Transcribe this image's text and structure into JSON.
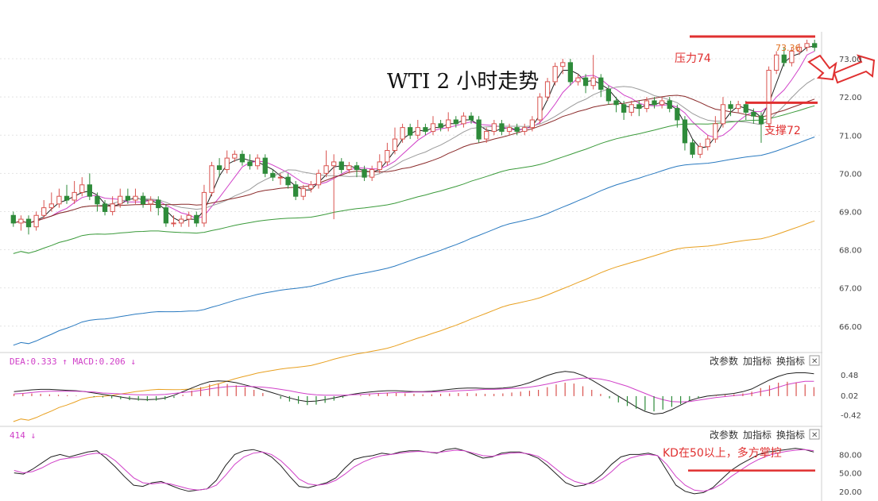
{
  "colors": {
    "up": "#d9534f",
    "down": "#2e8b3a",
    "annotation": "#e03030",
    "ma_black": "#202020",
    "ma_magenta": "#d040c8",
    "ma_gray": "#9a9a9a",
    "ma_brown": "#8a2a2a",
    "ma_green": "#3a9a3a",
    "ma_blue": "#2a7ac0",
    "ma_orange": "#e8a020",
    "grid": "#e4e4e4",
    "axis_text": "#444444"
  },
  "chart_data": [
    {
      "id": "price",
      "type": "candlestick",
      "title": "WTI 2 小时走势",
      "ylim": [
        65.6,
        73.5
      ],
      "yticks": [
        "66.00",
        "67.00",
        "68.00",
        "69.00",
        "70.00",
        "71.00",
        "72.00",
        "73.00"
      ],
      "last_price_label": "73.36",
      "candles": [
        [
          68.9,
          68.7,
          69.0,
          68.6
        ],
        [
          68.7,
          68.8,
          68.9,
          68.5
        ],
        [
          68.8,
          68.6,
          68.9,
          68.4
        ],
        [
          68.6,
          68.9,
          69.0,
          68.5
        ],
        [
          68.9,
          69.1,
          69.3,
          68.8
        ],
        [
          69.1,
          69.2,
          69.5,
          69.0
        ],
        [
          69.2,
          69.4,
          69.6,
          69.1
        ],
        [
          69.4,
          69.3,
          69.7,
          69.2
        ],
        [
          69.3,
          69.5,
          69.8,
          69.2
        ],
        [
          69.5,
          69.7,
          69.9,
          69.4
        ],
        [
          69.7,
          69.4,
          70.0,
          69.3
        ],
        [
          69.4,
          69.2,
          69.5,
          69.0
        ],
        [
          69.2,
          69.0,
          69.3,
          68.9
        ],
        [
          69.0,
          69.2,
          69.4,
          68.9
        ],
        [
          69.2,
          69.4,
          69.6,
          69.1
        ],
        [
          69.4,
          69.3,
          69.6,
          69.2
        ],
        [
          69.3,
          69.4,
          69.6,
          69.2
        ],
        [
          69.4,
          69.2,
          69.5,
          69.1
        ],
        [
          69.2,
          69.3,
          69.4,
          69.0
        ],
        [
          69.3,
          69.1,
          69.4,
          68.9
        ],
        [
          69.1,
          68.7,
          69.2,
          68.6
        ],
        [
          68.7,
          68.7,
          68.9,
          68.6
        ],
        [
          68.7,
          68.8,
          68.9,
          68.6
        ],
        [
          68.8,
          68.9,
          69.0,
          68.6
        ],
        [
          68.9,
          68.7,
          69.0,
          68.6
        ],
        [
          68.7,
          69.5,
          69.7,
          68.6
        ],
        [
          69.5,
          70.2,
          70.3,
          69.4
        ],
        [
          70.2,
          70.1,
          70.4,
          69.9
        ],
        [
          70.1,
          70.4,
          70.6,
          70.0
        ],
        [
          70.4,
          70.5,
          70.6,
          70.3
        ],
        [
          70.5,
          70.3,
          70.6,
          70.2
        ],
        [
          70.3,
          70.2,
          70.5,
          70.1
        ],
        [
          70.2,
          70.4,
          70.5,
          70.1
        ],
        [
          70.4,
          70.0,
          70.5,
          69.9
        ],
        [
          70.0,
          69.9,
          70.1,
          69.8
        ],
        [
          69.9,
          69.9,
          70.0,
          69.7
        ],
        [
          69.9,
          69.7,
          70.0,
          69.6
        ],
        [
          69.7,
          69.4,
          69.8,
          69.3
        ],
        [
          69.4,
          69.6,
          69.7,
          69.3
        ],
        [
          69.6,
          69.7,
          69.8,
          69.5
        ],
        [
          69.7,
          70.0,
          70.1,
          69.6
        ],
        [
          70.0,
          70.2,
          70.6,
          69.9
        ],
        [
          70.2,
          70.3,
          70.5,
          68.8
        ],
        [
          70.3,
          70.1,
          70.4,
          70.0
        ],
        [
          70.1,
          70.2,
          70.3,
          70.0
        ],
        [
          70.2,
          70.1,
          70.3,
          69.9
        ],
        [
          70.1,
          69.9,
          70.2,
          69.8
        ],
        [
          69.9,
          70.1,
          70.2,
          69.8
        ],
        [
          70.1,
          70.3,
          70.5,
          70.0
        ],
        [
          70.3,
          70.6,
          70.8,
          70.2
        ],
        [
          70.6,
          70.9,
          71.2,
          70.5
        ],
        [
          70.9,
          71.2,
          71.3,
          70.8
        ],
        [
          71.2,
          71.0,
          71.3,
          70.9
        ],
        [
          71.0,
          71.2,
          71.4,
          70.9
        ],
        [
          71.2,
          71.1,
          71.3,
          71.0
        ],
        [
          71.1,
          71.3,
          71.5,
          71.0
        ],
        [
          71.3,
          71.2,
          71.4,
          71.1
        ],
        [
          71.2,
          71.4,
          71.6,
          71.1
        ],
        [
          71.4,
          71.3,
          71.5,
          71.2
        ],
        [
          71.3,
          71.5,
          71.6,
          71.2
        ],
        [
          71.5,
          71.4,
          71.6,
          71.3
        ],
        [
          71.4,
          70.9,
          71.5,
          70.8
        ],
        [
          70.9,
          71.1,
          71.2,
          70.8
        ],
        [
          71.1,
          71.3,
          71.4,
          71.0
        ],
        [
          71.3,
          71.1,
          71.4,
          71.0
        ],
        [
          71.1,
          71.2,
          71.3,
          71.0
        ],
        [
          71.2,
          71.1,
          71.3,
          71.0
        ],
        [
          71.1,
          71.2,
          71.3,
          71.0
        ],
        [
          71.2,
          71.4,
          71.5,
          71.1
        ],
        [
          71.4,
          72.0,
          72.1,
          71.3
        ],
        [
          72.0,
          72.4,
          72.5,
          71.9
        ],
        [
          72.4,
          72.8,
          72.9,
          72.3
        ],
        [
          72.8,
          72.9,
          73.0,
          72.6
        ],
        [
          72.9,
          72.4,
          73.0,
          72.3
        ],
        [
          72.4,
          72.5,
          72.6,
          72.3
        ],
        [
          72.5,
          72.3,
          72.6,
          72.1
        ],
        [
          72.3,
          72.5,
          73.1,
          72.2
        ],
        [
          72.5,
          72.2,
          72.6,
          72.0
        ],
        [
          72.2,
          71.9,
          72.3,
          71.8
        ],
        [
          71.9,
          71.8,
          72.0,
          71.6
        ],
        [
          71.8,
          71.6,
          71.9,
          71.4
        ],
        [
          71.6,
          71.8,
          71.9,
          71.5
        ],
        [
          71.8,
          71.7,
          71.9,
          71.5
        ],
        [
          71.7,
          71.9,
          72.0,
          71.6
        ],
        [
          71.9,
          71.8,
          72.0,
          71.7
        ],
        [
          71.8,
          71.9,
          72.0,
          71.7
        ],
        [
          71.9,
          71.7,
          72.0,
          71.6
        ],
        [
          71.7,
          71.4,
          71.8,
          71.2
        ],
        [
          71.4,
          70.8,
          71.5,
          70.6
        ],
        [
          70.8,
          70.5,
          70.9,
          70.4
        ],
        [
          70.5,
          70.7,
          70.8,
          70.4
        ],
        [
          70.7,
          70.9,
          71.0,
          70.6
        ],
        [
          70.9,
          71.3,
          71.5,
          70.8
        ],
        [
          71.3,
          71.8,
          72.0,
          71.2
        ],
        [
          71.8,
          71.7,
          71.9,
          71.5
        ],
        [
          71.7,
          71.8,
          71.9,
          71.6
        ],
        [
          71.8,
          71.6,
          71.9,
          71.4
        ],
        [
          71.6,
          71.5,
          71.7,
          71.3
        ],
        [
          71.5,
          71.3,
          71.6,
          70.8
        ],
        [
          71.3,
          72.7,
          72.8,
          71.2
        ],
        [
          72.7,
          73.1,
          73.2,
          72.6
        ],
        [
          73.1,
          72.9,
          73.3,
          72.8
        ],
        [
          72.9,
          73.2,
          73.3,
          72.8
        ],
        [
          73.2,
          73.3,
          73.4,
          73.1
        ],
        [
          73.3,
          73.4,
          73.5,
          73.2
        ],
        [
          73.4,
          73.3,
          73.5,
          73.2
        ]
      ],
      "annotations": {
        "resistance_label": "压力74",
        "support_label": "支撑72"
      }
    },
    {
      "id": "macd",
      "type": "macd",
      "header": "DEA:0.333 ↑ MACD:0.206 ↓",
      "ylim": [
        -0.55,
        0.6
      ],
      "yticks": [
        "0.48",
        "0.02",
        "-0.42"
      ],
      "hist": [
        0.05,
        0.06,
        0.06,
        0.05,
        0.04,
        0.03,
        0.02,
        0.01,
        0.0,
        -0.02,
        -0.03,
        -0.05,
        -0.07,
        -0.09,
        -0.1,
        -0.11,
        -0.1,
        -0.08,
        -0.04,
        0.03,
        0.12,
        0.2,
        0.26,
        0.28,
        0.27,
        0.24,
        0.2,
        0.14,
        0.07,
        0.0,
        -0.06,
        -0.12,
        -0.17,
        -0.2,
        -0.19,
        -0.15,
        -0.1,
        -0.04,
        0.0,
        0.02,
        0.04,
        0.06,
        0.07,
        0.07,
        0.06,
        0.05,
        0.04,
        0.04,
        0.05,
        0.06,
        0.07,
        0.07,
        0.06,
        0.05,
        0.05,
        0.06,
        0.08,
        0.1,
        0.12,
        0.14,
        0.2,
        0.26,
        0.3,
        0.28,
        0.22,
        0.14,
        0.05,
        -0.05,
        -0.14,
        -0.22,
        -0.28,
        -0.32,
        -0.34,
        -0.3,
        -0.24,
        -0.18,
        -0.1,
        -0.04,
        0.0,
        0.02,
        0.03,
        0.04,
        0.06,
        0.1,
        0.18,
        0.24,
        0.3,
        0.32,
        0.3,
        0.26,
        0.2
      ],
      "dif": [
        0.1,
        0.12,
        0.14,
        0.15,
        0.15,
        0.14,
        0.13,
        0.12,
        0.1,
        0.07,
        0.04,
        0.01,
        -0.02,
        -0.05,
        -0.07,
        -0.08,
        -0.07,
        -0.04,
        0.02,
        0.1,
        0.18,
        0.26,
        0.32,
        0.34,
        0.33,
        0.3,
        0.25,
        0.2,
        0.14,
        0.08,
        0.02,
        -0.04,
        -0.09,
        -0.12,
        -0.11,
        -0.08,
        -0.04,
        0.0,
        0.04,
        0.07,
        0.09,
        0.11,
        0.12,
        0.12,
        0.11,
        0.1,
        0.1,
        0.11,
        0.13,
        0.15,
        0.17,
        0.18,
        0.18,
        0.17,
        0.17,
        0.18,
        0.2,
        0.24,
        0.3,
        0.38,
        0.46,
        0.52,
        0.55,
        0.53,
        0.46,
        0.36,
        0.24,
        0.12,
        0.0,
        -0.12,
        -0.24,
        -0.34,
        -0.4,
        -0.38,
        -0.3,
        -0.2,
        -0.1,
        -0.04,
        0.0,
        0.02,
        0.04,
        0.06,
        0.1,
        0.16,
        0.26,
        0.36,
        0.44,
        0.5,
        0.52,
        0.52,
        0.5
      ],
      "dea": [
        0.05,
        0.06,
        0.08,
        0.1,
        0.11,
        0.11,
        0.11,
        0.11,
        0.1,
        0.09,
        0.07,
        0.06,
        0.05,
        0.04,
        0.03,
        0.03,
        0.03,
        0.04,
        0.06,
        0.08,
        0.1,
        0.13,
        0.16,
        0.19,
        0.21,
        0.22,
        0.22,
        0.21,
        0.2,
        0.18,
        0.15,
        0.12,
        0.08,
        0.05,
        0.03,
        0.02,
        0.02,
        0.02,
        0.03,
        0.04,
        0.05,
        0.06,
        0.07,
        0.08,
        0.08,
        0.09,
        0.09,
        0.09,
        0.1,
        0.11,
        0.12,
        0.13,
        0.14,
        0.15,
        0.15,
        0.16,
        0.17,
        0.18,
        0.2,
        0.23,
        0.27,
        0.31,
        0.35,
        0.38,
        0.4,
        0.4,
        0.38,
        0.34,
        0.28,
        0.22,
        0.14,
        0.06,
        -0.02,
        -0.08,
        -0.12,
        -0.13,
        -0.12,
        -0.09,
        -0.06,
        -0.03,
        -0.01,
        0.01,
        0.03,
        0.06,
        0.1,
        0.14,
        0.2,
        0.26,
        0.3,
        0.33,
        0.33
      ]
    },
    {
      "id": "kd",
      "type": "kd",
      "header": "414 ↓",
      "ylim": [
        12,
        96
      ],
      "yticks": [
        "80.00",
        "50.00",
        "20.00"
      ],
      "k": [
        50,
        48,
        56,
        66,
        76,
        80,
        76,
        80,
        84,
        86,
        74,
        60,
        44,
        30,
        28,
        34,
        36,
        30,
        24,
        20,
        22,
        24,
        38,
        62,
        80,
        86,
        88,
        84,
        76,
        62,
        44,
        28,
        26,
        30,
        34,
        42,
        58,
        72,
        76,
        78,
        82,
        80,
        84,
        86,
        86,
        84,
        82,
        88,
        90,
        86,
        80,
        74,
        76,
        82,
        84,
        84,
        80,
        74,
        62,
        48,
        34,
        28,
        30,
        36,
        48,
        64,
        76,
        80,
        80,
        82,
        78,
        54,
        30,
        20,
        16,
        18,
        26,
        40,
        54,
        64,
        72,
        80,
        84,
        86,
        88,
        90,
        88,
        84
      ],
      "d": [
        54,
        50,
        52,
        58,
        66,
        72,
        74,
        76,
        80,
        82,
        80,
        70,
        56,
        42,
        34,
        32,
        34,
        32,
        28,
        24,
        22,
        24,
        30,
        46,
        64,
        76,
        82,
        84,
        80,
        70,
        56,
        40,
        32,
        30,
        32,
        38,
        48,
        60,
        68,
        74,
        78,
        80,
        82,
        84,
        85,
        84,
        83,
        85,
        87,
        86,
        82,
        78,
        77,
        80,
        82,
        83,
        81,
        77,
        68,
        56,
        44,
        36,
        32,
        33,
        40,
        52,
        66,
        74,
        78,
        80,
        78,
        64,
        44,
        30,
        22,
        20,
        24,
        32,
        44,
        54,
        64,
        72,
        78,
        82,
        85,
        87,
        88,
        86
      ],
      "annotation": "KD在50以上，多方掌控"
    }
  ],
  "toolbar": {
    "change_params": "改参数",
    "add_indicator": "加指标",
    "switch_indicator": "换指标",
    "close_symbol": "✕"
  }
}
